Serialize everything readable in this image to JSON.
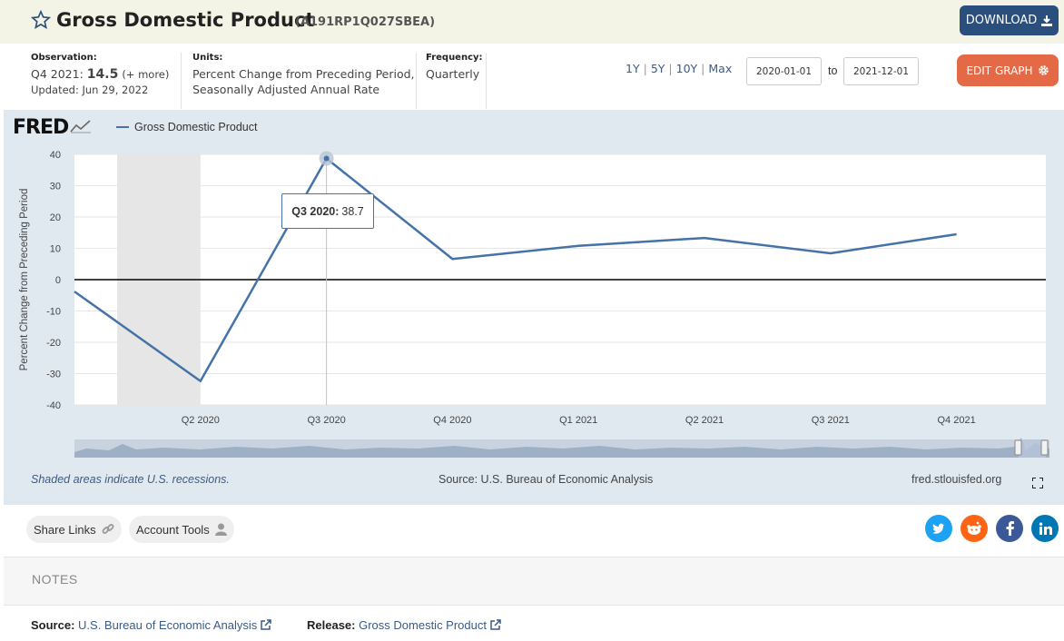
{
  "header": {
    "title": "Gross Domestic Product",
    "series_id": "(A191RP1Q027SBEA)",
    "download_label": "DOWNLOAD"
  },
  "meta": {
    "observation_label": "Observation:",
    "observation_period": "Q4 2021:",
    "observation_value": "14.5",
    "observation_more": "(+ more)",
    "updated": "Updated: Jun 29, 2022",
    "units_label": "Units:",
    "units_line1": "Percent Change from Preceding Period,",
    "units_line2": "Seasonally Adjusted Annual Rate",
    "frequency_label": "Frequency:",
    "frequency_value": "Quarterly"
  },
  "range_buttons": [
    "1Y",
    "5Y",
    "10Y",
    "Max"
  ],
  "date_range": {
    "start": "2020-01-01",
    "to_label": "to",
    "end": "2021-12-01"
  },
  "edit_graph_label": "EDIT GRAPH",
  "graph": {
    "logo": "FRED",
    "legend_label": "Gross Domestic Product",
    "tooltip_period": "Q3 2020:",
    "tooltip_value": "38.7",
    "recession_note": "Shaded areas indicate U.S. recessions.",
    "source_note": "Source: U.S. Bureau of Economic Analysis",
    "site": "fred.stlouisfed.org"
  },
  "chart_data": {
    "type": "line",
    "x": [
      "Q1 2020",
      "Q2 2020",
      "Q3 2020",
      "Q4 2020",
      "Q1 2021",
      "Q2 2021",
      "Q3 2021",
      "Q4 2021"
    ],
    "series": [
      {
        "name": "Gross Domestic Product",
        "values": [
          -3.8,
          -32.4,
          38.7,
          6.6,
          10.8,
          13.3,
          8.4,
          14.5
        ]
      }
    ],
    "x_tick_labels": [
      "Q2 2020",
      "Q3 2020",
      "Q4 2020",
      "Q1 2021",
      "Q2 2021",
      "Q3 2021",
      "Q4 2021"
    ],
    "ylabel": "Percent Change from Preceding Period",
    "ylim": [
      -40,
      40
    ],
    "yticks": [
      40,
      30,
      20,
      10,
      0,
      -10,
      -20,
      -30,
      -40
    ],
    "recession_period": [
      "Q1 2020",
      "Q2 2020"
    ],
    "line_color": "#4572a7",
    "recession_color": "#e6e6e6",
    "highlight": {
      "x": "Q3 2020",
      "value": 38.7
    },
    "grid": true
  },
  "share": {
    "share_links_label": "Share Links",
    "account_tools_label": "Account Tools",
    "social_icons": [
      "twitter-icon",
      "reddit-icon",
      "facebook-icon",
      "linkedin-icon"
    ],
    "social_colors": [
      "#1da1f2",
      "#ff6314",
      "#3b5998",
      "#0077b5"
    ]
  },
  "notes": {
    "title": "NOTES",
    "source_label": "Source:",
    "source_value": "U.S. Bureau of Economic Analysis",
    "release_label": "Release:",
    "release_value": "Gross Domestic Product"
  }
}
